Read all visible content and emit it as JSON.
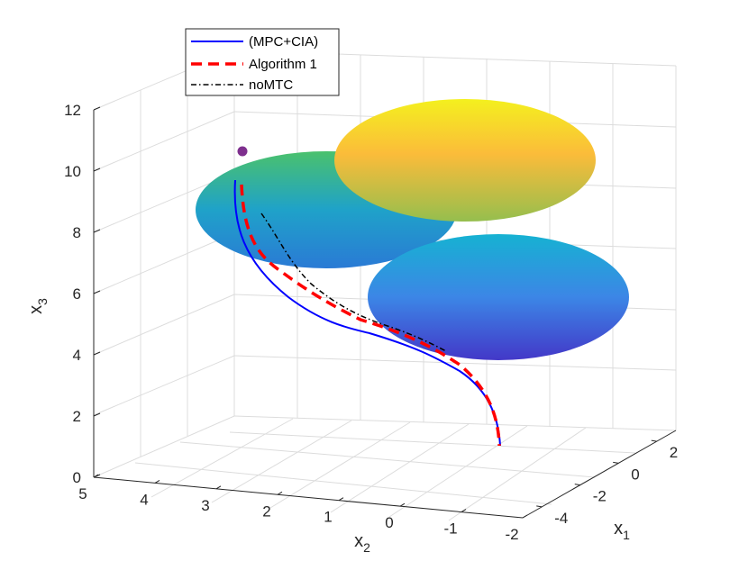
{
  "chart_data": {
    "type": "line",
    "view": "3d",
    "axes": {
      "x1": {
        "label": "x",
        "subscript": "1",
        "ticks": [
          2,
          0,
          -2,
          -4
        ],
        "tick_labels": [
          "2",
          "0",
          "-2",
          "-4"
        ]
      },
      "x2": {
        "label": "x",
        "subscript": "2",
        "ticks": [
          5,
          4,
          3,
          2,
          1,
          0,
          -1,
          -2
        ],
        "tick_labels": [
          "5",
          "4",
          "3",
          "2",
          "1",
          "0",
          "-1",
          "-2"
        ]
      },
      "x3": {
        "label": "x",
        "subscript": "3",
        "ticks": [
          0,
          2,
          4,
          6,
          8,
          10,
          12
        ],
        "tick_labels": [
          "0",
          "2",
          "4",
          "6",
          "8",
          "10",
          "12"
        ],
        "range": [
          0,
          12
        ]
      }
    },
    "grid": true,
    "legend_position": "top-left",
    "legend": [
      {
        "label": "(MPC+CIA)",
        "color": "#0000ff",
        "style": "solid"
      },
      {
        "label": "Algorithm 1",
        "color": "#ff0000",
        "style": "dashed"
      },
      {
        "label": "noMTC",
        "color": "#000000",
        "style": "dash-dot"
      }
    ],
    "target_point": {
      "color": "#7e2f8e",
      "x3": 10.6
    },
    "obstacles": [
      {
        "name": "sphere-middle-left",
        "fill_top": "#4ac16d",
        "fill_mid": "#1fa2c9",
        "fill_bottom": "#2a7ad5"
      },
      {
        "name": "sphere-top-right",
        "fill_top": "#f4f01e",
        "fill_mid": "#fbbc3a",
        "fill_bottom": "#95be4e"
      },
      {
        "name": "sphere-bottom-right",
        "fill_top": "#16b2d2",
        "fill_mid": "#3c86e6",
        "fill_bottom": "#4338c8"
      }
    ],
    "series": [
      {
        "name": "(MPC+CIA)",
        "x3_start": 9.6,
        "x3_end": 0.9
      },
      {
        "name": "Algorithm 1",
        "x3_start": 9.5,
        "x3_end": 0.9
      },
      {
        "name": "noMTC",
        "x3_start": 8.7,
        "x3_end": 3.9
      }
    ]
  }
}
